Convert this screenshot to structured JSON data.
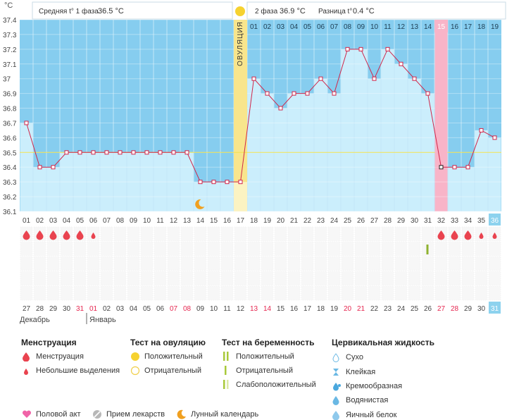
{
  "unit_label": "°C",
  "header": {
    "phase1_label": "Средняя t° 1 фаза",
    "phase1_value": "36.5 °C",
    "phase2_label": "2 фаза",
    "phase2_value": "36.9 °C",
    "diff_label": "Разница t°",
    "diff_value": "0.4 °C"
  },
  "ovulation_label": "ОВУЛЯЦИЯ",
  "months": {
    "prev": "Декабрь",
    "next": "Январь"
  },
  "colors": {
    "phase_bg": "#86cdef",
    "bar_fill": "#cbeefc",
    "line": "#d0264a",
    "ovulation_band": "#f8e58c",
    "highlight_pink": "#f8b4c8",
    "today_box": "#8dd2ee",
    "baseline": "#f2e24f"
  },
  "chart_data": {
    "type": "line",
    "title": "",
    "ylabel": "°C",
    "ylim": [
      36.1,
      37.4
    ],
    "yticks": [
      "37.4",
      "37.3",
      "37.2",
      "37.1",
      "37",
      "36.9",
      "36.8",
      "36.7",
      "36.6",
      "36.5",
      "36.4",
      "36.3",
      "36.2",
      "36.1"
    ],
    "cycle_days": [
      "01",
      "02",
      "03",
      "04",
      "05",
      "06",
      "07",
      "08",
      "09",
      "10",
      "11",
      "12",
      "13",
      "14",
      "15",
      "16",
      "17",
      "18",
      "19",
      "20",
      "21",
      "22",
      "23",
      "24",
      "25",
      "26",
      "27",
      "28",
      "29",
      "30",
      "31",
      "32",
      "33",
      "34",
      "35",
      "36"
    ],
    "phase2_day_numbers": [
      "01",
      "02",
      "03",
      "04",
      "05",
      "06",
      "07",
      "08",
      "09",
      "10",
      "11",
      "12",
      "13",
      "14",
      "15",
      "16",
      "17",
      "18",
      "19"
    ],
    "calendar_dates": [
      "27",
      "28",
      "29",
      "30",
      "31",
      "01",
      "02",
      "03",
      "04",
      "05",
      "06",
      "07",
      "08",
      "09",
      "10",
      "11",
      "12",
      "13",
      "14",
      "15",
      "16",
      "17",
      "18",
      "19",
      "20",
      "21",
      "22",
      "23",
      "24",
      "25",
      "26",
      "27",
      "28",
      "29",
      "30",
      "31"
    ],
    "temperatures": [
      36.7,
      36.4,
      36.4,
      36.5,
      36.5,
      36.5,
      36.5,
      36.5,
      36.5,
      36.5,
      36.5,
      36.5,
      36.5,
      36.3,
      36.3,
      36.3,
      36.3,
      37.0,
      36.9,
      36.8,
      36.9,
      36.9,
      37.0,
      36.9,
      37.2,
      37.2,
      37.0,
      37.2,
      37.1,
      37.0,
      36.9,
      36.4,
      36.4,
      36.4,
      36.65,
      36.6
    ],
    "coverline": 36.5,
    "ovulation_day": 17,
    "highlight_day": 32,
    "moon_day": 14,
    "today_day": 36,
    "menstruation": [
      {
        "day": 1,
        "type": "big"
      },
      {
        "day": 2,
        "type": "big"
      },
      {
        "day": 3,
        "type": "big"
      },
      {
        "day": 4,
        "type": "big"
      },
      {
        "day": 5,
        "type": "big"
      },
      {
        "day": 6,
        "type": "small"
      },
      {
        "day": 32,
        "type": "big"
      },
      {
        "day": 33,
        "type": "big"
      },
      {
        "day": 34,
        "type": "big"
      },
      {
        "day": 35,
        "type": "small"
      },
      {
        "day": 36,
        "type": "small"
      }
    ],
    "pregnancy_test_negative_day": 31,
    "red_date_indices": [
      4,
      5,
      11,
      12,
      17,
      18,
      24,
      25,
      31,
      32
    ]
  },
  "legend": {
    "menstruation": {
      "title": "Менструация",
      "items": [
        "Менструация",
        "Небольшие выделения"
      ]
    },
    "ovulation_test": {
      "title": "Тест на овуляцию",
      "items": [
        "Положительный",
        "Отрицательный"
      ]
    },
    "pregnancy_test": {
      "title": "Тест на беременность",
      "items": [
        "Положительный",
        "Отрицательный",
        "Слабоположительный"
      ]
    },
    "cervical": {
      "title": "Цервикальная жидкость",
      "items": [
        "Сухо",
        "Клейкая",
        "Кремообразная",
        "Водянистая",
        "Яичный белок"
      ]
    },
    "bottom": [
      "Половой акт",
      "Прием лекарств",
      "Лунный календарь"
    ]
  }
}
